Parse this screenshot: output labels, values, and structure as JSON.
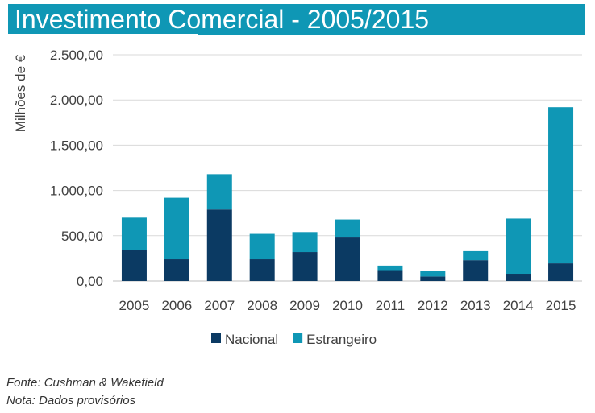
{
  "header": {
    "title": "Investimento Comercial - 2005/2015"
  },
  "colors": {
    "nacional": "#0b3a63",
    "estrangeiro": "#0f97b5",
    "title_bg": "#0f97b5"
  },
  "chart_data": {
    "type": "bar",
    "stacked": true,
    "title": "Investimento Comercial - 2005/2015",
    "ylabel": "Milhões de €",
    "xlabel": "",
    "categories": [
      "2005",
      "2006",
      "2007",
      "2008",
      "2009",
      "2010",
      "2011",
      "2012",
      "2013",
      "2014",
      "2015"
    ],
    "series": [
      {
        "name": "Nacional",
        "color": "#0b3a63",
        "values": [
          340,
          240,
          790,
          240,
          320,
          480,
          120,
          50,
          230,
          80,
          195
        ]
      },
      {
        "name": "Estrangeiro",
        "color": "#0f97b5",
        "values": [
          360,
          680,
          390,
          280,
          220,
          200,
          50,
          60,
          100,
          610,
          1725
        ]
      }
    ],
    "ylim": [
      0,
      2500
    ],
    "yticks": [
      0,
      500,
      1000,
      1500,
      2000,
      2500
    ],
    "ytick_labels": [
      "0,00",
      "500,00",
      "1.000,00",
      "1.500,00",
      "2.000,00",
      "2.500,00"
    ],
    "grid": true,
    "legend_position": "bottom"
  },
  "footnotes": {
    "source": "Fonte: Cushman & Wakefield",
    "note": "Nota: Dados provisórios"
  }
}
